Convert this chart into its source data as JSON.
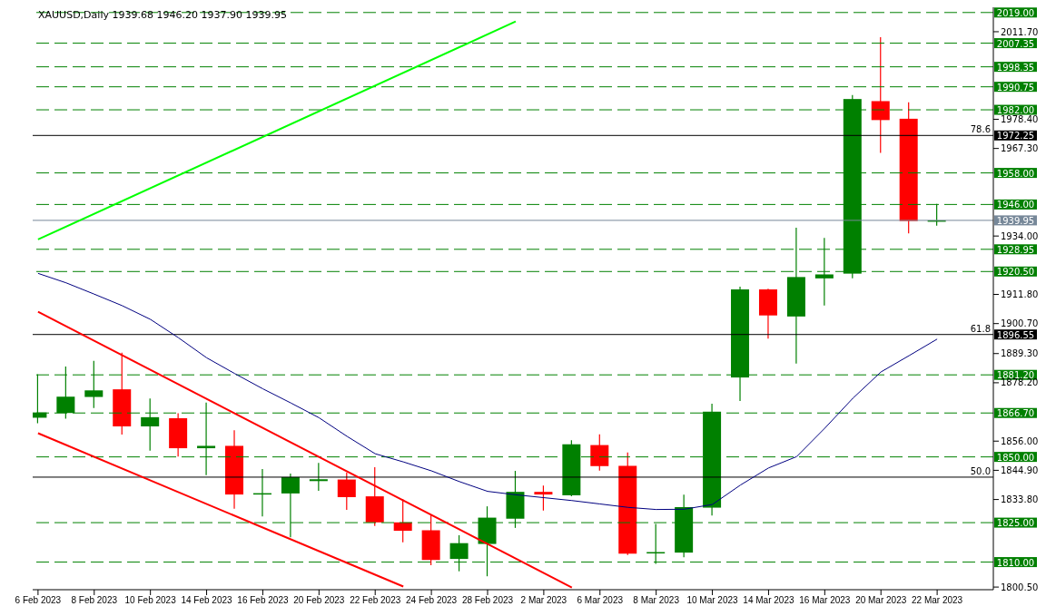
{
  "chart_data": {
    "type": "candlestick",
    "title": "XAUUSD,Daily  1939.68 1946.20 1937.90 1939.95",
    "categories": [
      "6 Feb 2023",
      null,
      "8 Feb 2023",
      null,
      "10 Feb 2023",
      null,
      "14 Feb 2023",
      null,
      "16 Feb 2023",
      null,
      "20 Feb 2023",
      null,
      "22 Feb 2023",
      null,
      "24 Feb 2023",
      null,
      "28 Feb 2023",
      null,
      "2 Mar 2023",
      null,
      "6 Mar 2023",
      null,
      "8 Mar 2023",
      null,
      "10 Mar 2023",
      null,
      "14 Mar 2023",
      null,
      "16 Mar 2023",
      null,
      "20 Mar 2023",
      null,
      "22 Mar 2023"
    ],
    "ohlc": [
      [
        1864.9,
        1881.4,
        1862.8,
        1866.9
      ],
      [
        1866.7,
        1884.4,
        1864.5,
        1872.9
      ],
      [
        1872.8,
        1886.5,
        1868.6,
        1875.3
      ],
      [
        1875.7,
        1889.6,
        1858.5,
        1861.6
      ],
      [
        1861.6,
        1872.2,
        1852.4,
        1865.1
      ],
      [
        1864.7,
        1866.6,
        1850.1,
        1853.3
      ],
      [
        1853.3,
        1870.7,
        1843.1,
        1854.2
      ],
      [
        1854.2,
        1860.1,
        1830.3,
        1835.7
      ],
      [
        1835.7,
        1845.4,
        1827.4,
        1836.2
      ],
      [
        1836.1,
        1843.7,
        1819.4,
        1842.3
      ],
      [
        1840.8,
        1847.7,
        1837.1,
        1841.5
      ],
      [
        1841.4,
        1844.0,
        1829.9,
        1834.7
      ],
      [
        1835.0,
        1846.1,
        1823.7,
        1825.1
      ],
      [
        1825.1,
        1833.9,
        1817.5,
        1821.9
      ],
      [
        1822.1,
        1827.9,
        1808.8,
        1810.8
      ],
      [
        1811.2,
        1820.2,
        1806.5,
        1817.2
      ],
      [
        1816.9,
        1831.2,
        1804.6,
        1826.9
      ],
      [
        1826.5,
        1844.7,
        1823.0,
        1836.7
      ],
      [
        1836.7,
        1839.1,
        1829.6,
        1835.7
      ],
      [
        1835.4,
        1856.3,
        1835.0,
        1854.8
      ],
      [
        1854.5,
        1858.6,
        1844.8,
        1846.5
      ],
      [
        1846.6,
        1851.7,
        1812.7,
        1813.2
      ],
      [
        1813.3,
        1824.5,
        1809.3,
        1813.8
      ],
      [
        1813.6,
        1835.6,
        1811.8,
        1830.9
      ],
      [
        1830.7,
        1870.2,
        1827.7,
        1867.2
      ],
      [
        1880.2,
        1914.7,
        1871.3,
        1913.7
      ],
      [
        1913.7,
        1914.0,
        1895.0,
        1903.8
      ],
      [
        1903.4,
        1937.2,
        1885.5,
        1918.4
      ],
      [
        1917.9,
        1933.3,
        1907.6,
        1919.4
      ],
      [
        1919.7,
        1987.6,
        1917.9,
        1986.1
      ],
      [
        1985.3,
        2009.6,
        1965.6,
        1978.1
      ],
      [
        1978.6,
        1984.9,
        1935.0,
        1939.7
      ],
      [
        1939.68,
        1946.2,
        1937.9,
        1939.95
      ]
    ],
    "colors": [
      "#008000",
      "#008000",
      "#008000",
      "#ff0000",
      "#008000",
      "#ff0000",
      "#008000",
      "#ff0000",
      "#008000",
      "#008000",
      "#008000",
      "#ff0000",
      "#ff0000",
      "#ff0000",
      "#ff0000",
      "#008000",
      "#008000",
      "#008000",
      "#ff0000",
      "#008000",
      "#ff0000",
      "#ff0000",
      "#008000",
      "#008000",
      "#008000",
      "#008000",
      "#ff0000",
      "#008000",
      "#008000",
      "#008000",
      "#ff0000",
      "#ff0000",
      "#008000"
    ],
    "series": [
      {
        "type": "line",
        "color": "#00ff00",
        "values": [
          1932.7,
          null,
          null,
          null,
          null,
          null,
          null,
          null,
          null,
          null,
          null,
          null,
          null,
          null,
          null,
          null,
          null,
          2015.6,
          null,
          null,
          null,
          null,
          null,
          null,
          null,
          null,
          null,
          null,
          null,
          null,
          null,
          null,
          null
        ]
      },
      {
        "type": "line",
        "color": "#ff0000",
        "values": [
          1905.2,
          null,
          null,
          null,
          null,
          null,
          null,
          null,
          null,
          null,
          null,
          null,
          null,
          null,
          null,
          null,
          null,
          null,
          null,
          1800.3,
          null,
          null,
          null,
          null,
          null,
          null,
          null,
          null,
          null,
          null,
          null,
          null,
          null
        ]
      },
      {
        "type": "line",
        "color": "#ff0000",
        "values": [
          1859.0,
          null,
          null,
          null,
          null,
          null,
          null,
          null,
          null,
          null,
          null,
          null,
          null,
          1800.7,
          null,
          null,
          null,
          null,
          null,
          null,
          null,
          null,
          null,
          null,
          null,
          null,
          null,
          null,
          null,
          null,
          null,
          null,
          null
        ]
      },
      {
        "type": "line",
        "color": "#000080",
        "values": [
          1919.8,
          1916.2,
          1911.9,
          1907.5,
          1902.3,
          1895.3,
          1887.7,
          1881.7,
          1875.9,
          1870.5,
          1864.9,
          1857.8,
          1851.2,
          1848.1,
          1844.7,
          1840.6,
          1836.9,
          1835.6,
          1834.5,
          1833.4,
          1832.1,
          1830.8,
          1830.0,
          1830.1,
          1831.9,
          1839.3,
          1845.8,
          1850.1,
          1860.9,
          1872.3,
          1882.3,
          1888.5,
          1894.8
        ]
      }
    ],
    "ylim": [
      1799.5,
      2021
    ],
    "yticks": [
      {
        "value": 2011.7,
        "label": "2011.70"
      },
      {
        "value": 1978.4,
        "label": "1978.40"
      },
      {
        "value": 1967.3,
        "label": "1967.30"
      },
      {
        "value": 1934,
        "label": "1934.00"
      },
      {
        "value": 1911.8,
        "label": "1911.80"
      },
      {
        "value": 1900.7,
        "label": "1900.70"
      },
      {
        "value": 1889.3,
        "label": "1889.30"
      },
      {
        "value": 1878.2,
        "label": "1878.20"
      },
      {
        "value": 1856,
        "label": "1856.00"
      },
      {
        "value": 1844.9,
        "label": "1844.90"
      },
      {
        "value": 1833.8,
        "label": "1833.80"
      },
      {
        "value": 1800.5,
        "label": "1800.50"
      }
    ],
    "ref_lines": [
      {
        "axis": "y",
        "value": 2019.0,
        "label": "2019.00",
        "color": "#008000",
        "line_style": "dashed"
      },
      {
        "axis": "y",
        "value": 2007.35,
        "label": "2007.35",
        "color": "#008000",
        "line_style": "dashed"
      },
      {
        "axis": "y",
        "value": 1998.35,
        "label": "1998.35",
        "color": "#008000",
        "line_style": "dashed"
      },
      {
        "axis": "y",
        "value": 1990.75,
        "label": "1990.75",
        "color": "#008000",
        "line_style": "dashed"
      },
      {
        "axis": "y",
        "value": 1982.0,
        "label": "1982.00",
        "color": "#008000",
        "line_style": "dashed"
      },
      {
        "axis": "y",
        "value": 1972.25,
        "label": "1972.25",
        "color": "#000000",
        "line_style": "solid"
      },
      {
        "axis": "y",
        "value": 1958.0,
        "label": "1958.00",
        "color": "#008000",
        "line_style": "dashed"
      },
      {
        "axis": "y",
        "value": 1946.0,
        "label": "1946.00",
        "color": "#008000",
        "line_style": "dashed"
      },
      {
        "axis": "y",
        "value": 1939.95,
        "label": "1939.95",
        "color": "#778899",
        "line_style": "solid"
      },
      {
        "axis": "y",
        "value": 1928.95,
        "label": "1928.95",
        "color": "#008000",
        "line_style": "dashed"
      },
      {
        "axis": "y",
        "value": 1920.5,
        "label": "1920.50",
        "color": "#008000",
        "line_style": "dashed"
      },
      {
        "axis": "y",
        "value": 1896.55,
        "label": "1896.55",
        "color": "#000000",
        "line_style": "solid"
      },
      {
        "axis": "y",
        "value": 1881.2,
        "label": "1881.20",
        "color": "#008000",
        "line_style": "dashed"
      },
      {
        "axis": "y",
        "value": 1866.7,
        "label": "1866.70",
        "color": "#008000",
        "line_style": "dashed"
      },
      {
        "axis": "y",
        "value": 1850.0,
        "label": "1850.00",
        "color": "#008000",
        "line_style": "dashed"
      },
      {
        "axis": "y",
        "value": 1842.3,
        "color": "#000000",
        "line_style": "solid"
      },
      {
        "axis": "y",
        "value": 1825.0,
        "label": "1825.00",
        "color": "#008000",
        "line_style": "dashed"
      },
      {
        "axis": "y",
        "value": 1810.0,
        "label": "1810.00",
        "color": "#008000",
        "line_style": "dashed"
      }
    ],
    "annotations": [
      {
        "text": "78.6",
        "y": 1972.25
      },
      {
        "text": "61.8",
        "y": 1896.55
      },
      {
        "text": "50.0",
        "y": 1842.3
      }
    ]
  }
}
